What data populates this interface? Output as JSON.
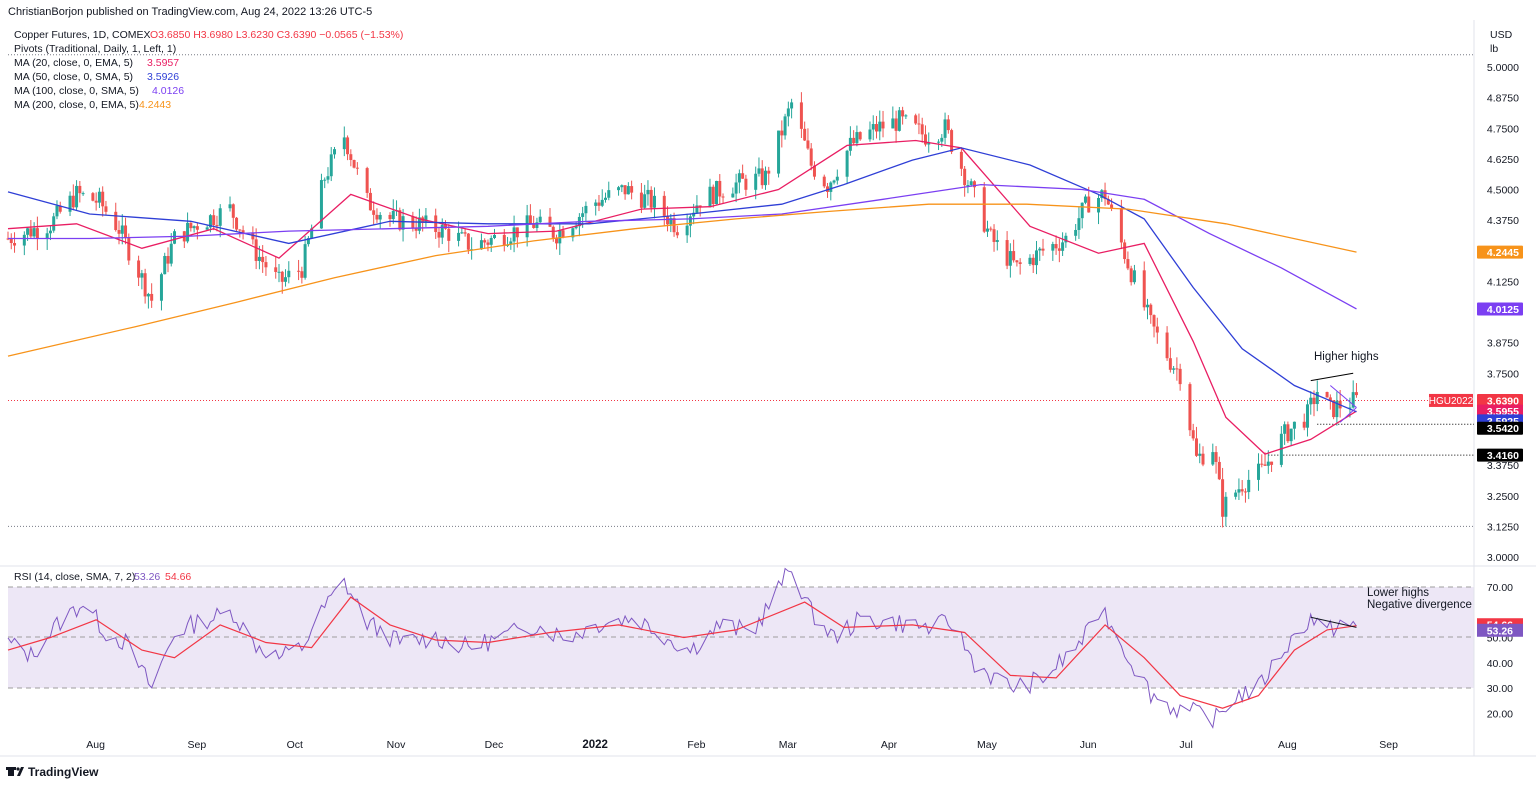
{
  "header": {
    "publisher": "ChristianBorjon published on TradingView.com, Aug 24, 2022 13:26 UTC-5"
  },
  "legend": {
    "symbol": "Copper Futures, 1D, COMEX",
    "ohlc": "O3.6850  H3.6980  L3.6230  C3.6390  −0.0565 (−1.53%)",
    "pivots": "Pivots (Traditional, Daily, 1, Left, 1)",
    "ma": [
      {
        "label": "MA (20, close, 0, EMA, 5)",
        "value": "3.5957",
        "color": "#e91e63"
      },
      {
        "label": "MA (50, close, 0, SMA, 5)",
        "value": "3.5926",
        "color": "#2f3fd6"
      },
      {
        "label": "MA (100, close, 0, SMA, 5)",
        "value": "4.0126",
        "color": "#7b3ff2"
      },
      {
        "label": "MA (200, close, 0, EMA, 5)",
        "value": "4.2443",
        "color": "#f7931a"
      }
    ],
    "rsi_label": "RSI (14, close, SMA, 7, 2)",
    "rsi_value": "53.26",
    "rsi_ma_value": "54.66"
  },
  "price_axis": {
    "currency": "USD",
    "unit": "lb",
    "ticks": [
      "5.0000",
      "4.8750",
      "4.7500",
      "4.6250",
      "4.5000",
      "4.3750",
      "4.1250",
      "3.8750",
      "3.7500",
      "3.3750",
      "3.2500",
      "3.1250",
      "3.0000"
    ]
  },
  "price_labels": [
    {
      "text": "4.2445",
      "price": 4.2445,
      "bg": "#f7931a",
      "fg": "#ffffff"
    },
    {
      "text": "4.0125",
      "price": 4.0125,
      "bg": "#7b3ff2",
      "fg": "#ffffff"
    },
    {
      "text": "3.6390",
      "price": 3.639,
      "bg": "#f23645",
      "fg": "#ffffff"
    },
    {
      "text": "3.5955",
      "price": 3.5955,
      "bg": "#e91e63",
      "fg": "#ffffff"
    },
    {
      "text": "3.5925",
      "price": 3.5925,
      "bg": "#2f3fd6",
      "fg": "#ffffff"
    },
    {
      "text": "3.5420",
      "price": 3.542,
      "bg": "#000000",
      "fg": "#ffffff"
    },
    {
      "text": "3.4160",
      "price": 3.416,
      "bg": "#000000",
      "fg": "#ffffff"
    }
  ],
  "symbol_tag": "HGU2022",
  "rsi_axis": {
    "ticks": [
      "70.00",
      "50.00",
      "40.00",
      "30.00",
      "20.00"
    ],
    "labels": [
      {
        "text": "54.66",
        "value": 54.66,
        "bg": "#f23645"
      },
      {
        "text": "53.26",
        "value": 53.26,
        "bg": "#7e57c2"
      }
    ]
  },
  "time_axis": {
    "labels": [
      "Aug",
      "Sep",
      "Oct",
      "Nov",
      "Dec",
      "2022",
      "Feb",
      "Mar",
      "Apr",
      "May",
      "Jun",
      "Jul",
      "Aug",
      "Sep"
    ]
  },
  "annotations": {
    "higher_highs": "Higher highs",
    "lower_highs": "Lower highs",
    "negative_divergence": "Negative divergence"
  },
  "footer": {
    "logo": "TradingView"
  },
  "chart_data": {
    "type": "candlestick",
    "title": "Copper Futures, 1D, COMEX",
    "y_range": [
      2.95,
      5.07
    ],
    "x_range": [
      "2021-07-07",
      "2022-09-29"
    ],
    "colors": {
      "up": "#26a69a",
      "down": "#ef5350",
      "rsi": "#7e57c2",
      "rsi_ma": "#f23645",
      "rsi_band": "#ede7f6"
    },
    "price_path": [
      [
        "2021-07-07",
        4.3
      ],
      [
        "2021-07-20",
        4.36
      ],
      [
        "2021-07-28",
        4.48
      ],
      [
        "2021-08-04",
        4.45
      ],
      [
        "2021-08-10",
        4.34
      ],
      [
        "2021-08-20",
        4.05
      ],
      [
        "2021-08-27",
        4.3
      ],
      [
        "2021-09-03",
        4.36
      ],
      [
        "2021-09-13",
        4.42
      ],
      [
        "2021-09-20",
        4.26
      ],
      [
        "2021-09-28",
        4.12
      ],
      [
        "2021-10-05",
        4.18
      ],
      [
        "2021-10-12",
        4.55
      ],
      [
        "2021-10-18",
        4.72
      ],
      [
        "2021-10-25",
        4.45
      ],
      [
        "2021-11-01",
        4.38
      ],
      [
        "2021-11-10",
        4.36
      ],
      [
        "2021-11-18",
        4.33
      ],
      [
        "2021-11-26",
        4.27
      ],
      [
        "2021-12-03",
        4.3
      ],
      [
        "2021-12-15",
        4.36
      ],
      [
        "2021-12-22",
        4.32
      ],
      [
        "2022-01-03",
        4.45
      ],
      [
        "2022-01-12",
        4.5
      ],
      [
        "2022-01-20",
        4.45
      ],
      [
        "2022-01-28",
        4.35
      ],
      [
        "2022-02-04",
        4.46
      ],
      [
        "2022-02-14",
        4.52
      ],
      [
        "2022-02-24",
        4.55
      ],
      [
        "2022-03-04",
        4.85
      ],
      [
        "2022-03-10",
        4.6
      ],
      [
        "2022-03-15",
        4.52
      ],
      [
        "2022-03-22",
        4.68
      ],
      [
        "2022-03-30",
        4.75
      ],
      [
        "2022-04-06",
        4.78
      ],
      [
        "2022-04-14",
        4.72
      ],
      [
        "2022-04-20",
        4.75
      ],
      [
        "2022-04-28",
        4.5
      ],
      [
        "2022-05-04",
        4.3
      ],
      [
        "2022-05-12",
        4.18
      ],
      [
        "2022-05-20",
        4.25
      ],
      [
        "2022-05-27",
        4.3
      ],
      [
        "2022-06-03",
        4.45
      ],
      [
        "2022-06-08",
        4.48
      ],
      [
        "2022-06-15",
        4.2
      ],
      [
        "2022-06-22",
        3.95
      ],
      [
        "2022-06-28",
        3.8
      ],
      [
        "2022-07-01",
        3.75
      ],
      [
        "2022-07-06",
        3.4
      ],
      [
        "2022-07-11",
        3.45
      ],
      [
        "2022-07-14",
        3.2
      ],
      [
        "2022-07-20",
        3.3
      ],
      [
        "2022-07-26",
        3.35
      ],
      [
        "2022-08-02",
        3.5
      ],
      [
        "2022-08-09",
        3.58
      ],
      [
        "2022-08-12",
        3.68
      ],
      [
        "2022-08-16",
        3.6
      ],
      [
        "2022-08-19",
        3.62
      ],
      [
        "2022-08-24",
        3.639
      ]
    ],
    "moving_averages": [
      {
        "name": "MA (20, close, 0, EMA, 5)",
        "color": "#e91e63",
        "points": [
          [
            "2021-07-07",
            4.34
          ],
          [
            "2021-07-28",
            4.36
          ],
          [
            "2021-08-17",
            4.26
          ],
          [
            "2021-09-08",
            4.34
          ],
          [
            "2021-09-28",
            4.22
          ],
          [
            "2021-10-20",
            4.48
          ],
          [
            "2021-11-10",
            4.38
          ],
          [
            "2021-12-01",
            4.32
          ],
          [
            "2021-12-22",
            4.33
          ],
          [
            "2022-01-17",
            4.42
          ],
          [
            "2022-02-07",
            4.43
          ],
          [
            "2022-02-28",
            4.5
          ],
          [
            "2022-03-21",
            4.68
          ],
          [
            "2022-04-11",
            4.7
          ],
          [
            "2022-04-25",
            4.67
          ],
          [
            "2022-05-16",
            4.35
          ],
          [
            "2022-06-06",
            4.24
          ],
          [
            "2022-06-20",
            4.28
          ],
          [
            "2022-07-05",
            3.88
          ],
          [
            "2022-07-15",
            3.57
          ],
          [
            "2022-07-27",
            3.42
          ],
          [
            "2022-08-10",
            3.48
          ],
          [
            "2022-08-24",
            3.5955
          ]
        ]
      },
      {
        "name": "MA (50, close, 0, SMA, 5)",
        "color": "#2f3fd6",
        "points": [
          [
            "2021-07-07",
            4.49
          ],
          [
            "2021-08-01",
            4.4
          ],
          [
            "2021-09-01",
            4.37
          ],
          [
            "2021-10-01",
            4.28
          ],
          [
            "2021-11-01",
            4.37
          ],
          [
            "2021-12-01",
            4.36
          ],
          [
            "2022-01-01",
            4.36
          ],
          [
            "2022-02-01",
            4.4
          ],
          [
            "2022-03-01",
            4.44
          ],
          [
            "2022-03-20",
            4.52
          ],
          [
            "2022-04-10",
            4.62
          ],
          [
            "2022-04-25",
            4.67
          ],
          [
            "2022-05-16",
            4.6
          ],
          [
            "2022-06-06",
            4.48
          ],
          [
            "2022-06-20",
            4.38
          ],
          [
            "2022-07-05",
            4.1
          ],
          [
            "2022-07-20",
            3.85
          ],
          [
            "2022-08-05",
            3.7
          ],
          [
            "2022-08-24",
            3.5925
          ]
        ]
      },
      {
        "name": "MA (100, close, 0, SMA, 5)",
        "color": "#7b3ff2",
        "points": [
          [
            "2021-07-07",
            4.3
          ],
          [
            "2021-08-01",
            4.3
          ],
          [
            "2021-09-01",
            4.31
          ],
          [
            "2021-10-01",
            4.33
          ],
          [
            "2021-11-01",
            4.34
          ],
          [
            "2021-12-01",
            4.35
          ],
          [
            "2022-01-01",
            4.37
          ],
          [
            "2022-02-01",
            4.38
          ],
          [
            "2022-03-01",
            4.4
          ],
          [
            "2022-04-01",
            4.46
          ],
          [
            "2022-05-01",
            4.52
          ],
          [
            "2022-06-01",
            4.5
          ],
          [
            "2022-06-20",
            4.46
          ],
          [
            "2022-07-10",
            4.32
          ],
          [
            "2022-08-01",
            4.18
          ],
          [
            "2022-08-24",
            4.0126
          ]
        ]
      },
      {
        "name": "MA (200, close, 0, EMA, 5)",
        "color": "#f7931a",
        "points": [
          [
            "2021-07-07",
            3.82
          ],
          [
            "2021-08-15",
            3.94
          ],
          [
            "2021-09-15",
            4.04
          ],
          [
            "2021-10-15",
            4.14
          ],
          [
            "2021-11-15",
            4.23
          ],
          [
            "2021-12-15",
            4.29
          ],
          [
            "2022-01-15",
            4.34
          ],
          [
            "2022-02-15",
            4.38
          ],
          [
            "2022-03-15",
            4.41
          ],
          [
            "2022-04-15",
            4.44
          ],
          [
            "2022-05-15",
            4.44
          ],
          [
            "2022-06-15",
            4.42
          ],
          [
            "2022-07-15",
            4.36
          ],
          [
            "2022-08-24",
            4.2443
          ]
        ]
      }
    ],
    "horizontal_levels": [
      {
        "price": 5.05,
        "color": "#787b86",
        "style": "dotted",
        "from": "2021-07-07"
      },
      {
        "price": 3.639,
        "color": "#f23645",
        "style": "dotted",
        "from": "2021-07-07"
      },
      {
        "price": 3.542,
        "color": "#000000",
        "style": "dotted",
        "from": "2022-08-12"
      },
      {
        "price": 3.416,
        "color": "#000000",
        "style": "dotted",
        "from": "2022-07-28"
      },
      {
        "price": 3.125,
        "color": "#787b86",
        "style": "dotted",
        "from": "2021-07-07"
      }
    ],
    "trendlines": [
      {
        "from": [
          "2022-08-10",
          3.72
        ],
        "to": [
          "2022-08-23",
          3.75
        ],
        "color": "#000000"
      },
      {
        "from": [
          "2022-08-24",
          3.61
        ],
        "to": [
          "2022-08-19",
          3.55
        ],
        "color": "#7b3ff2"
      },
      {
        "from": [
          "2022-08-24",
          3.61
        ],
        "to": [
          "2022-08-16",
          3.7
        ],
        "color": "#7b3ff2"
      }
    ],
    "rsi": {
      "y_range": [
        15,
        80
      ],
      "band": [
        30,
        70
      ],
      "midline": 50,
      "rsi_path": [
        [
          "2021-07-07",
          48
        ],
        [
          "2021-07-14",
          43
        ],
        [
          "2021-07-22",
          55
        ],
        [
          "2021-07-30",
          64
        ],
        [
          "2021-08-06",
          52
        ],
        [
          "2021-08-12",
          48
        ],
        [
          "2021-08-20",
          30
        ],
        [
          "2021-08-27",
          52
        ],
        [
          "2021-09-03",
          56
        ],
        [
          "2021-09-14",
          60
        ],
        [
          "2021-09-20",
          48
        ],
        [
          "2021-09-28",
          42
        ],
        [
          "2021-10-05",
          46
        ],
        [
          "2021-10-12",
          62
        ],
        [
          "2021-10-18",
          72
        ],
        [
          "2021-10-25",
          56
        ],
        [
          "2021-11-04",
          48
        ],
        [
          "2021-11-15",
          50
        ],
        [
          "2021-11-25",
          46
        ],
        [
          "2021-12-05",
          50
        ],
        [
          "2021-12-15",
          55
        ],
        [
          "2021-12-25",
          50
        ],
        [
          "2022-01-05",
          56
        ],
        [
          "2022-01-15",
          58
        ],
        [
          "2022-01-25",
          50
        ],
        [
          "2022-02-01",
          45
        ],
        [
          "2022-02-10",
          55
        ],
        [
          "2022-02-20",
          52
        ],
        [
          "2022-03-04",
          78
        ],
        [
          "2022-03-10",
          60
        ],
        [
          "2022-03-17",
          50
        ],
        [
          "2022-03-25",
          57
        ],
        [
          "2022-04-05",
          56
        ],
        [
          "2022-04-15",
          54
        ],
        [
          "2022-04-22",
          56
        ],
        [
          "2022-04-29",
          40
        ],
        [
          "2022-05-06",
          33
        ],
        [
          "2022-05-12",
          30
        ],
        [
          "2022-05-20",
          34
        ],
        [
          "2022-05-27",
          42
        ],
        [
          "2022-06-03",
          52
        ],
        [
          "2022-06-07",
          62
        ],
        [
          "2022-06-14",
          45
        ],
        [
          "2022-06-22",
          28
        ],
        [
          "2022-06-29",
          22
        ],
        [
          "2022-07-06",
          20
        ],
        [
          "2022-07-12",
          18
        ],
        [
          "2022-07-18",
          27
        ],
        [
          "2022-07-25",
          30
        ],
        [
          "2022-08-01",
          44
        ],
        [
          "2022-08-10",
          58
        ],
        [
          "2022-08-15",
          52
        ],
        [
          "2022-08-19",
          56
        ],
        [
          "2022-08-24",
          53.26
        ]
      ],
      "rsi_ma_path": [
        [
          "2021-07-07",
          45
        ],
        [
          "2021-07-20",
          50
        ],
        [
          "2021-08-03",
          57
        ],
        [
          "2021-08-17",
          45
        ],
        [
          "2021-08-27",
          42
        ],
        [
          "2021-09-10",
          55
        ],
        [
          "2021-09-24",
          48
        ],
        [
          "2021-10-08",
          46
        ],
        [
          "2021-10-20",
          66
        ],
        [
          "2021-11-01",
          55
        ],
        [
          "2021-11-15",
          49
        ],
        [
          "2021-12-01",
          48
        ],
        [
          "2021-12-20",
          52
        ],
        [
          "2022-01-10",
          55
        ],
        [
          "2022-01-30",
          50
        ],
        [
          "2022-02-15",
          53
        ],
        [
          "2022-03-08",
          64
        ],
        [
          "2022-03-20",
          54
        ],
        [
          "2022-04-10",
          55
        ],
        [
          "2022-04-26",
          52
        ],
        [
          "2022-05-10",
          35
        ],
        [
          "2022-05-24",
          34
        ],
        [
          "2022-06-08",
          55
        ],
        [
          "2022-06-20",
          42
        ],
        [
          "2022-07-01",
          27
        ],
        [
          "2022-07-14",
          22
        ],
        [
          "2022-07-25",
          27
        ],
        [
          "2022-08-05",
          45
        ],
        [
          "2022-08-15",
          53
        ],
        [
          "2022-08-24",
          54.66
        ]
      ],
      "divergence_line": {
        "from": [
          "2022-08-10",
          58
        ],
        "to": [
          "2022-08-24",
          54
        ]
      }
    }
  }
}
